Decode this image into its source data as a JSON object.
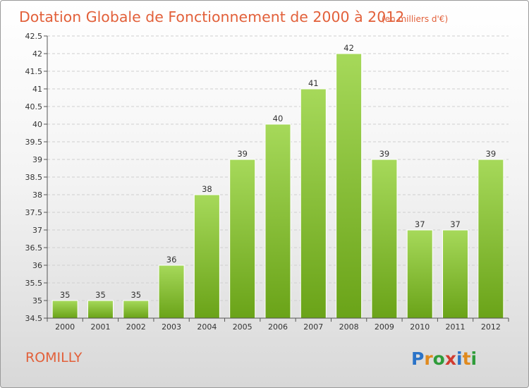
{
  "header": {
    "title": "Dotation Globale de Fonctionnement de 2000 à 2012",
    "unit": "(en milliers d'€)"
  },
  "footer": {
    "commune": "ROMILLY",
    "brand": [
      "P",
      "r",
      "o",
      "x",
      "i",
      "t",
      "i"
    ],
    "brand_colors": [
      "#2a73c8",
      "#e08a1e",
      "#2f9c3a",
      "#d13b2f",
      "#2a73c8",
      "#e08a1e",
      "#2f9c3a"
    ]
  },
  "colors": {
    "bar_top": "#a6d95a",
    "bar_bottom": "#6aa318",
    "bar_edge": "#ffffff",
    "grid": "#cfcfcf",
    "axis": "#555555"
  },
  "chart_data": {
    "type": "bar",
    "title": "Dotation Globale de Fonctionnement de 2000 à 2012",
    "categories": [
      "2000",
      "2001",
      "2002",
      "2003",
      "2004",
      "2005",
      "2006",
      "2007",
      "2008",
      "2009",
      "2010",
      "2011",
      "2012"
    ],
    "values": [
      35,
      35,
      35,
      36,
      38,
      39,
      40,
      41,
      42,
      39,
      37,
      37,
      39
    ],
    "data_labels": [
      "35",
      "35",
      "35",
      "36",
      "38",
      "39",
      "40",
      "41",
      "42",
      "39",
      "37",
      "37",
      "39"
    ],
    "ylim": [
      34.5,
      42.5
    ],
    "yticks": [
      34.5,
      35,
      35.5,
      36,
      36.5,
      37,
      37.5,
      38,
      38.5,
      39,
      39.5,
      40,
      40.5,
      41,
      41.5,
      42,
      42.5
    ],
    "ytick_labels": [
      "34.5",
      "35",
      "35.5",
      "36",
      "36.5",
      "37",
      "37.5",
      "38",
      "38.5",
      "39",
      "39.5",
      "40",
      "40.5",
      "41",
      "41.5",
      "42",
      "42.5"
    ],
    "grid": true,
    "xlabel": "",
    "ylabel": ""
  }
}
